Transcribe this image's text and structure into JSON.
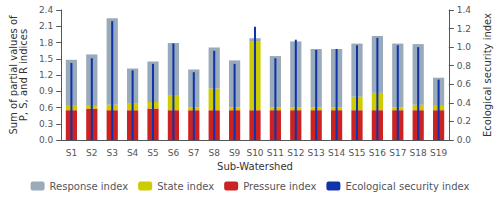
{
  "chart_data": {
    "type": "bar",
    "stacked": true,
    "categories": [
      "S1",
      "S2",
      "S3",
      "S4",
      "S5",
      "S6",
      "S7",
      "S8",
      "S9",
      "S10",
      "S11",
      "S12",
      "S13",
      "S14",
      "S15",
      "S16",
      "S17",
      "S18",
      "S19"
    ],
    "xlabel": "Sub-Watershed",
    "ylabel": "Sum of partial values of\nP, S, and R indices",
    "y2label": "Ecological security index",
    "ylim": [
      0.0,
      2.4
    ],
    "yticks": [
      {
        "value": 0,
        "label": "0.0"
      },
      0.3,
      0.6,
      0.9,
      1.2,
      1.5,
      1.8,
      2.1,
      2.4
    ],
    "y2lim": [
      0.0,
      1.4
    ],
    "y2ticks": [
      {
        "value": 0,
        "label": "0.0"
      },
      0.2,
      0.4,
      0.6,
      0.8,
      {
        "value": 1,
        "label": "1.0"
      },
      1.2,
      1.4
    ],
    "grid": false,
    "legend": "bottom",
    "series": [
      {
        "name": "Pressure index",
        "color": "#cc2222",
        "values": [
          0.55,
          0.58,
          0.55,
          0.55,
          0.58,
          0.55,
          0.55,
          0.55,
          0.55,
          0.55,
          0.55,
          0.55,
          0.55,
          0.55,
          0.55,
          0.55,
          0.55,
          0.55,
          0.55
        ]
      },
      {
        "name": "State index",
        "color": "#cccc00",
        "values": [
          0.08,
          0.05,
          0.1,
          0.12,
          0.12,
          0.28,
          0.05,
          0.4,
          0.05,
          1.28,
          0.05,
          0.05,
          0.05,
          0.05,
          0.25,
          0.32,
          0.05,
          0.1,
          0.08
        ]
      },
      {
        "name": "Response index",
        "color": "#99aabb",
        "values": [
          0.85,
          0.95,
          1.6,
          0.65,
          0.75,
          0.96,
          0.7,
          0.76,
          0.87,
          0.05,
          0.95,
          1.22,
          1.08,
          1.08,
          0.98,
          1.05,
          1.18,
          1.12,
          0.52
        ]
      },
      {
        "name": "Ecological security index",
        "color": "#1133aa",
        "axis": "y2",
        "values": [
          0.83,
          0.88,
          1.28,
          0.75,
          0.82,
          1.04,
          0.73,
          0.96,
          0.82,
          1.22,
          0.88,
          1.08,
          0.97,
          0.98,
          1.02,
          1.1,
          1.02,
          1.0,
          0.65
        ]
      }
    ]
  }
}
